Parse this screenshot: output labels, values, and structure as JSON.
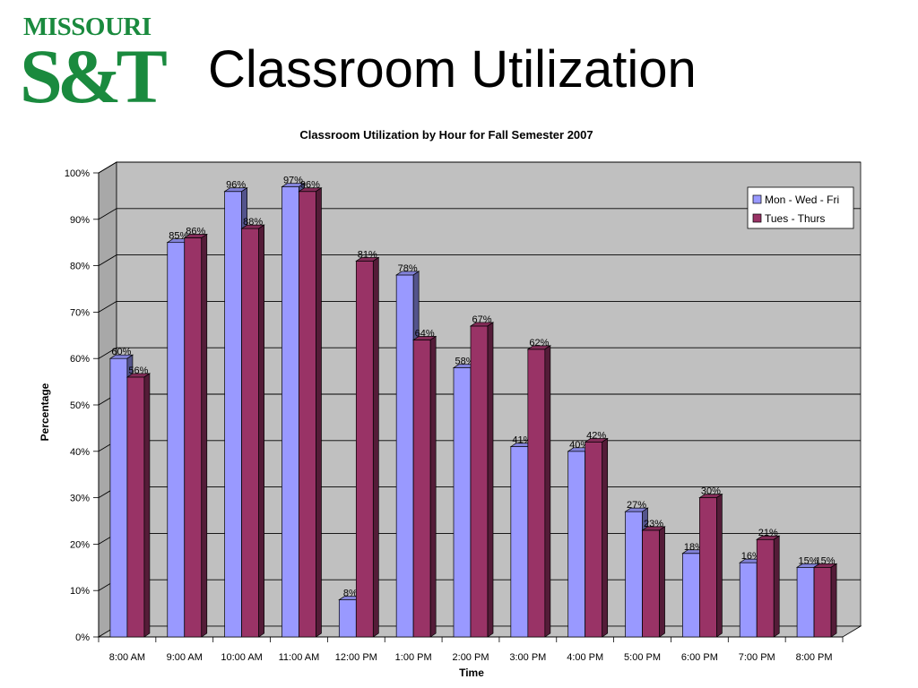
{
  "slide": {
    "title": "Classroom Utilization",
    "logo": {
      "top": "MISSOURI",
      "main": "S&T",
      "color": "#1a8a3e"
    }
  },
  "chart_data": {
    "type": "bar",
    "title": "Classroom Utilization by Hour for Fall Semester 2007",
    "xlabel": "Time",
    "ylabel": "Percentage",
    "ylim": [
      0,
      100
    ],
    "yticks": [
      "0%",
      "10%",
      "20%",
      "30%",
      "40%",
      "50%",
      "60%",
      "70%",
      "80%",
      "90%",
      "100%"
    ],
    "grid": true,
    "three_d": true,
    "legend_position": "top-right",
    "categories": [
      "8:00 AM",
      "9:00 AM",
      "10:00 AM",
      "11:00 AM",
      "12:00 PM",
      "1:00 PM",
      "2:00 PM",
      "3:00 PM",
      "4:00 PM",
      "5:00 PM",
      "6:00 PM",
      "7:00 PM",
      "8:00 PM"
    ],
    "series": [
      {
        "name": "Mon - Wed - Fri",
        "color": "#9999ff",
        "values": [
          60,
          85,
          96,
          97,
          8,
          78,
          58,
          41,
          40,
          27,
          18,
          16,
          15
        ],
        "labels": [
          "60%",
          "85%",
          "96%",
          "97%",
          "8%",
          "78%",
          "58%",
          "41%",
          "40%",
          "27%",
          "18%",
          "16%",
          "15%"
        ]
      },
      {
        "name": "Tues - Thurs",
        "color": "#993366",
        "values": [
          56,
          86,
          88,
          96,
          81,
          64,
          67,
          62,
          42,
          23,
          30,
          21,
          15
        ],
        "labels": [
          "56%",
          "86%",
          "88%",
          "96%",
          "81%",
          "64%",
          "67%",
          "62%",
          "42%",
          "23%",
          "30%",
          "21%",
          "15%"
        ]
      }
    ],
    "colors": {
      "wall": "#c0c0c0",
      "floor": "#c0c0c0",
      "gridline": "#000000"
    }
  }
}
